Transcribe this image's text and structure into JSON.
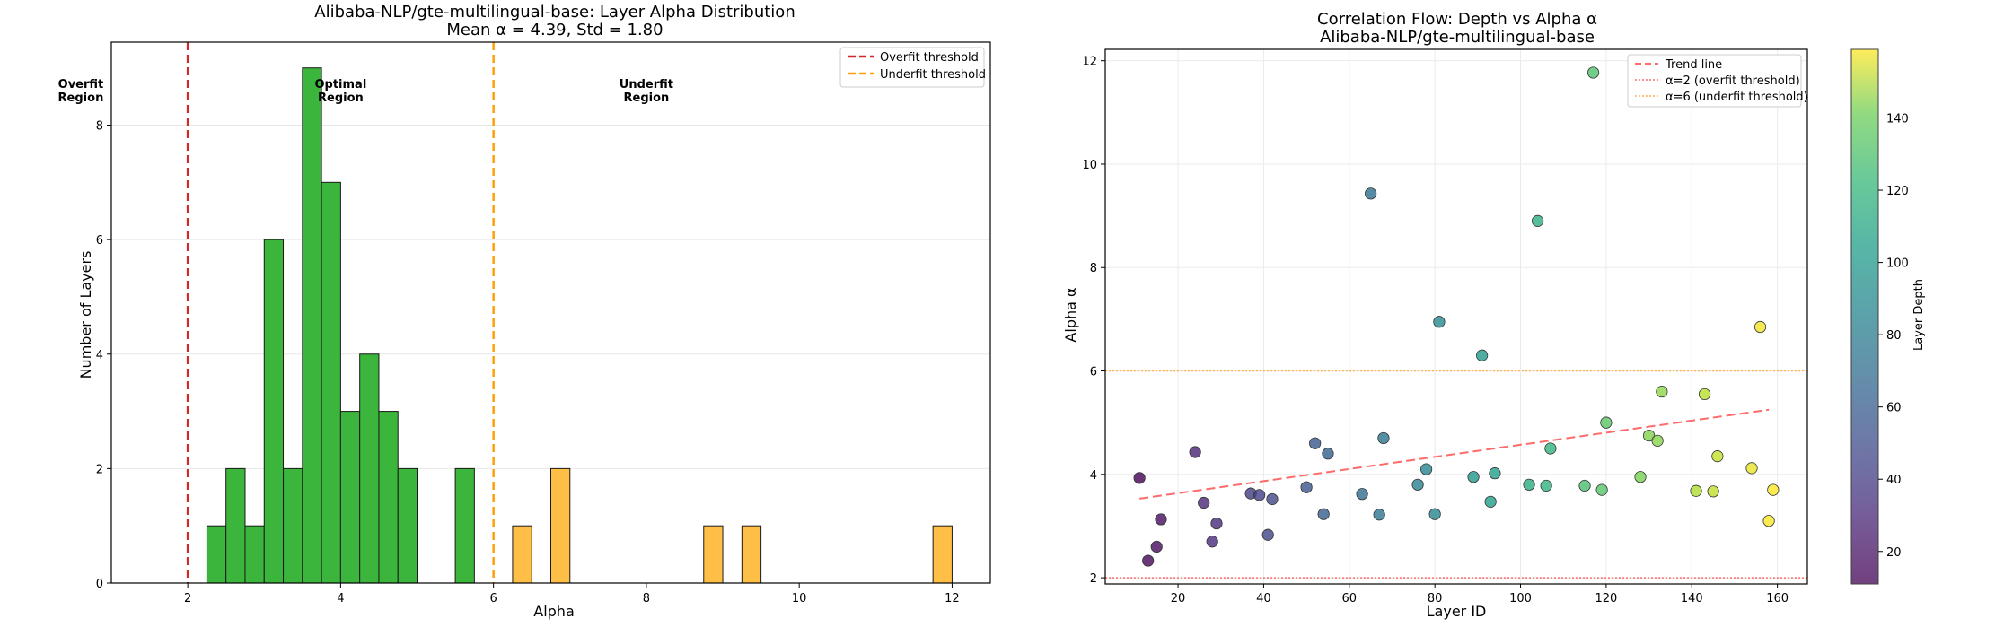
{
  "chart_data": [
    {
      "type": "bar",
      "title": "Alibaba-NLP/gte-multilingual-base: Layer Alpha Distribution",
      "subtitle": "Mean α = 4.39, Std = 1.80",
      "xlabel": "Alpha",
      "ylabel": "Number of Layers",
      "xlim": [
        1.0,
        12.5
      ],
      "ylim": [
        0,
        9.45
      ],
      "xticks": [
        2,
        4,
        6,
        8,
        10,
        12
      ],
      "yticks": [
        0,
        2,
        4,
        6,
        8
      ],
      "grid": "horizontal",
      "legend_position": "top-right",
      "legend": [
        "Overfit threshold",
        "Underfit threshold"
      ],
      "thresholds": [
        {
          "name": "Overfit threshold",
          "x": 2,
          "color": "#d62728"
        },
        {
          "name": "Underfit threshold",
          "x": 6,
          "color": "#ff9f0a"
        }
      ],
      "region_labels": [
        {
          "text": [
            "Overfit",
            "Region"
          ],
          "x": 0.6,
          "y": 8.65,
          "color": "#8b0000"
        },
        {
          "text": [
            "Optimal",
            "Region"
          ],
          "x": 4.0,
          "y": 8.65,
          "color": "#006400"
        },
        {
          "text": [
            "Underfit",
            "Region"
          ],
          "x": 8.0,
          "y": 8.65,
          "color": "#ff8c00"
        }
      ],
      "bin_width": 0.25,
      "bins": [
        {
          "x0": 2.25,
          "count": 1,
          "region": "optimal"
        },
        {
          "x0": 2.5,
          "count": 2,
          "region": "optimal"
        },
        {
          "x0": 2.75,
          "count": 1,
          "region": "optimal"
        },
        {
          "x0": 3.0,
          "count": 6,
          "region": "optimal"
        },
        {
          "x0": 3.25,
          "count": 2,
          "region": "optimal"
        },
        {
          "x0": 3.5,
          "count": 9,
          "region": "optimal"
        },
        {
          "x0": 3.75,
          "count": 7,
          "region": "optimal"
        },
        {
          "x0": 4.0,
          "count": 3,
          "region": "optimal"
        },
        {
          "x0": 4.25,
          "count": 4,
          "region": "optimal"
        },
        {
          "x0": 4.5,
          "count": 3,
          "region": "optimal"
        },
        {
          "x0": 4.75,
          "count": 2,
          "region": "optimal"
        },
        {
          "x0": 5.5,
          "count": 2,
          "region": "optimal"
        },
        {
          "x0": 6.25,
          "count": 1,
          "region": "underfit"
        },
        {
          "x0": 6.75,
          "count": 2,
          "region": "underfit"
        },
        {
          "x0": 8.75,
          "count": 1,
          "region": "underfit"
        },
        {
          "x0": 9.25,
          "count": 1,
          "region": "underfit"
        },
        {
          "x0": 11.75,
          "count": 1,
          "region": "underfit"
        }
      ],
      "colors": {
        "optimal": "#3cb53c",
        "underfit": "#ffbf47",
        "edge": "#1a1a1a"
      }
    },
    {
      "type": "scatter",
      "title": "Correlation Flow: Depth vs Alpha α",
      "subtitle": "Alibaba-NLP/gte-multilingual-base",
      "xlabel": "Layer ID",
      "ylabel": "Alpha α",
      "xlim": [
        3,
        167
      ],
      "ylim": [
        1.88,
        12.22
      ],
      "xticks": [
        20,
        40,
        60,
        80,
        100,
        120,
        140,
        160
      ],
      "yticks": [
        2,
        4,
        6,
        8,
        10,
        12
      ],
      "grid": "both",
      "legend_position": "top-right",
      "legend": [
        "Trend line",
        "α=2 (overfit threshold)",
        "α=6 (underfit threshold)"
      ],
      "trend_line": {
        "x": [
          11,
          158
        ],
        "y": [
          3.53,
          5.25
        ],
        "color": "#ff6b6b"
      },
      "hlines": [
        {
          "name": "α=2 (overfit threshold)",
          "y": 2,
          "color": "#ff6b6b"
        },
        {
          "name": "α=6 (underfit threshold)",
          "y": 6,
          "color": "#ffb347"
        }
      ],
      "colorbar": {
        "label": "Layer Depth",
        "min": 11,
        "max": 159,
        "ticks": [
          20,
          40,
          60,
          80,
          100,
          120,
          140
        ]
      },
      "points": [
        {
          "x": 11,
          "y": 3.93
        },
        {
          "x": 13,
          "y": 2.33
        },
        {
          "x": 15,
          "y": 2.6
        },
        {
          "x": 16,
          "y": 3.13
        },
        {
          "x": 24,
          "y": 4.43
        },
        {
          "x": 26,
          "y": 3.45
        },
        {
          "x": 28,
          "y": 2.7
        },
        {
          "x": 29,
          "y": 3.05
        },
        {
          "x": 37,
          "y": 3.63
        },
        {
          "x": 39,
          "y": 3.6
        },
        {
          "x": 41,
          "y": 2.83
        },
        {
          "x": 42,
          "y": 3.52
        },
        {
          "x": 50,
          "y": 3.75
        },
        {
          "x": 52,
          "y": 4.6
        },
        {
          "x": 54,
          "y": 3.23
        },
        {
          "x": 55,
          "y": 4.4
        },
        {
          "x": 63,
          "y": 3.62
        },
        {
          "x": 65,
          "y": 9.43
        },
        {
          "x": 67,
          "y": 3.22
        },
        {
          "x": 68,
          "y": 4.7
        },
        {
          "x": 76,
          "y": 3.8
        },
        {
          "x": 78,
          "y": 4.1
        },
        {
          "x": 80,
          "y": 3.23
        },
        {
          "x": 81,
          "y": 6.95
        },
        {
          "x": 89,
          "y": 3.95
        },
        {
          "x": 91,
          "y": 6.3
        },
        {
          "x": 93,
          "y": 3.47
        },
        {
          "x": 94,
          "y": 4.02
        },
        {
          "x": 102,
          "y": 3.8
        },
        {
          "x": 104,
          "y": 8.9
        },
        {
          "x": 106,
          "y": 3.78
        },
        {
          "x": 107,
          "y": 4.5
        },
        {
          "x": 115,
          "y": 3.78
        },
        {
          "x": 117,
          "y": 11.77
        },
        {
          "x": 119,
          "y": 3.7
        },
        {
          "x": 120,
          "y": 5.0
        },
        {
          "x": 128,
          "y": 3.95
        },
        {
          "x": 130,
          "y": 4.75
        },
        {
          "x": 132,
          "y": 4.65
        },
        {
          "x": 133,
          "y": 5.6
        },
        {
          "x": 141,
          "y": 3.68
        },
        {
          "x": 143,
          "y": 5.55
        },
        {
          "x": 145,
          "y": 3.67
        },
        {
          "x": 146,
          "y": 4.35
        },
        {
          "x": 154,
          "y": 4.12
        },
        {
          "x": 156,
          "y": 6.85
        },
        {
          "x": 158,
          "y": 3.1
        },
        {
          "x": 159,
          "y": 3.7
        }
      ]
    }
  ]
}
